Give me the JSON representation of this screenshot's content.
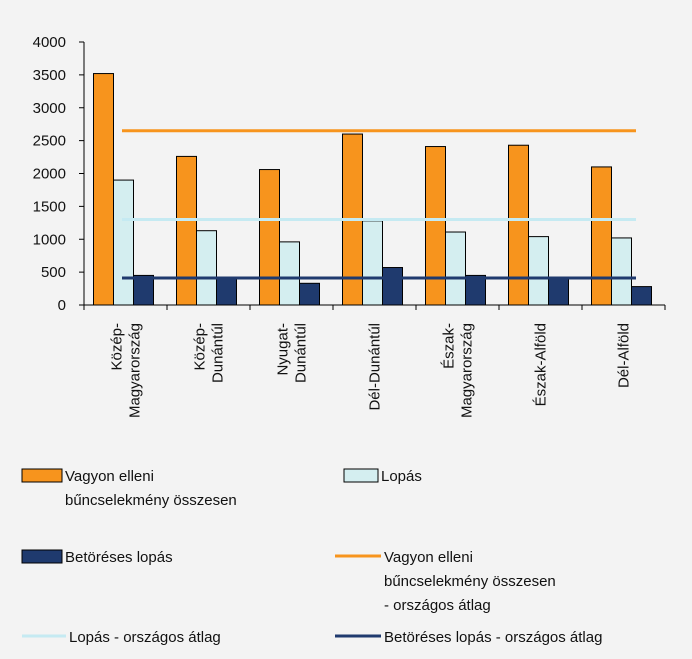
{
  "chart_data": {
    "type": "bar",
    "categories": [
      [
        "Közép-",
        "Magyarország"
      ],
      [
        "Közép-",
        "Dunántúl"
      ],
      [
        "Nyugat-",
        "Dunántúl"
      ],
      [
        "Dél-Dunántúl"
      ],
      [
        "Észak-",
        "Magyarország"
      ],
      [
        "Észak-Alföld"
      ],
      [
        "Dél-Alföld"
      ]
    ],
    "series": [
      {
        "name": [
          "Vagyon elleni",
          "bűncselekmény összesen"
        ],
        "color": "#f7941d",
        "values": [
          3520,
          2260,
          2060,
          2600,
          2410,
          2430,
          2100
        ]
      },
      {
        "name": [
          "Lopás"
        ],
        "color": "#d4eef0",
        "values": [
          1900,
          1130,
          960,
          1280,
          1110,
          1040,
          1020
        ]
      },
      {
        "name": [
          "Betöréses lopás"
        ],
        "color": "#1f3a6e",
        "values": [
          450,
          400,
          330,
          570,
          450,
          410,
          280
        ]
      }
    ],
    "reference_lines": [
      {
        "name": [
          "Vagyon elleni",
          "bűncselekmény összesen",
          "- országos átlag"
        ],
        "color": "#f7941d",
        "value": 2650
      },
      {
        "name": [
          "Lopás - országos átlag"
        ],
        "color": "#c5eaf2",
        "value": 1300
      },
      {
        "name": [
          "Betöréses lopás - országos átlag"
        ],
        "color": "#1f3a6e",
        "value": 410
      }
    ],
    "y_ticks": [
      "0",
      "500",
      "1000",
      "1500",
      "2000",
      "2500",
      "3000",
      "3500",
      "4000"
    ],
    "ylim": [
      0,
      4000
    ],
    "grid": false,
    "legend_position": "bottom"
  }
}
